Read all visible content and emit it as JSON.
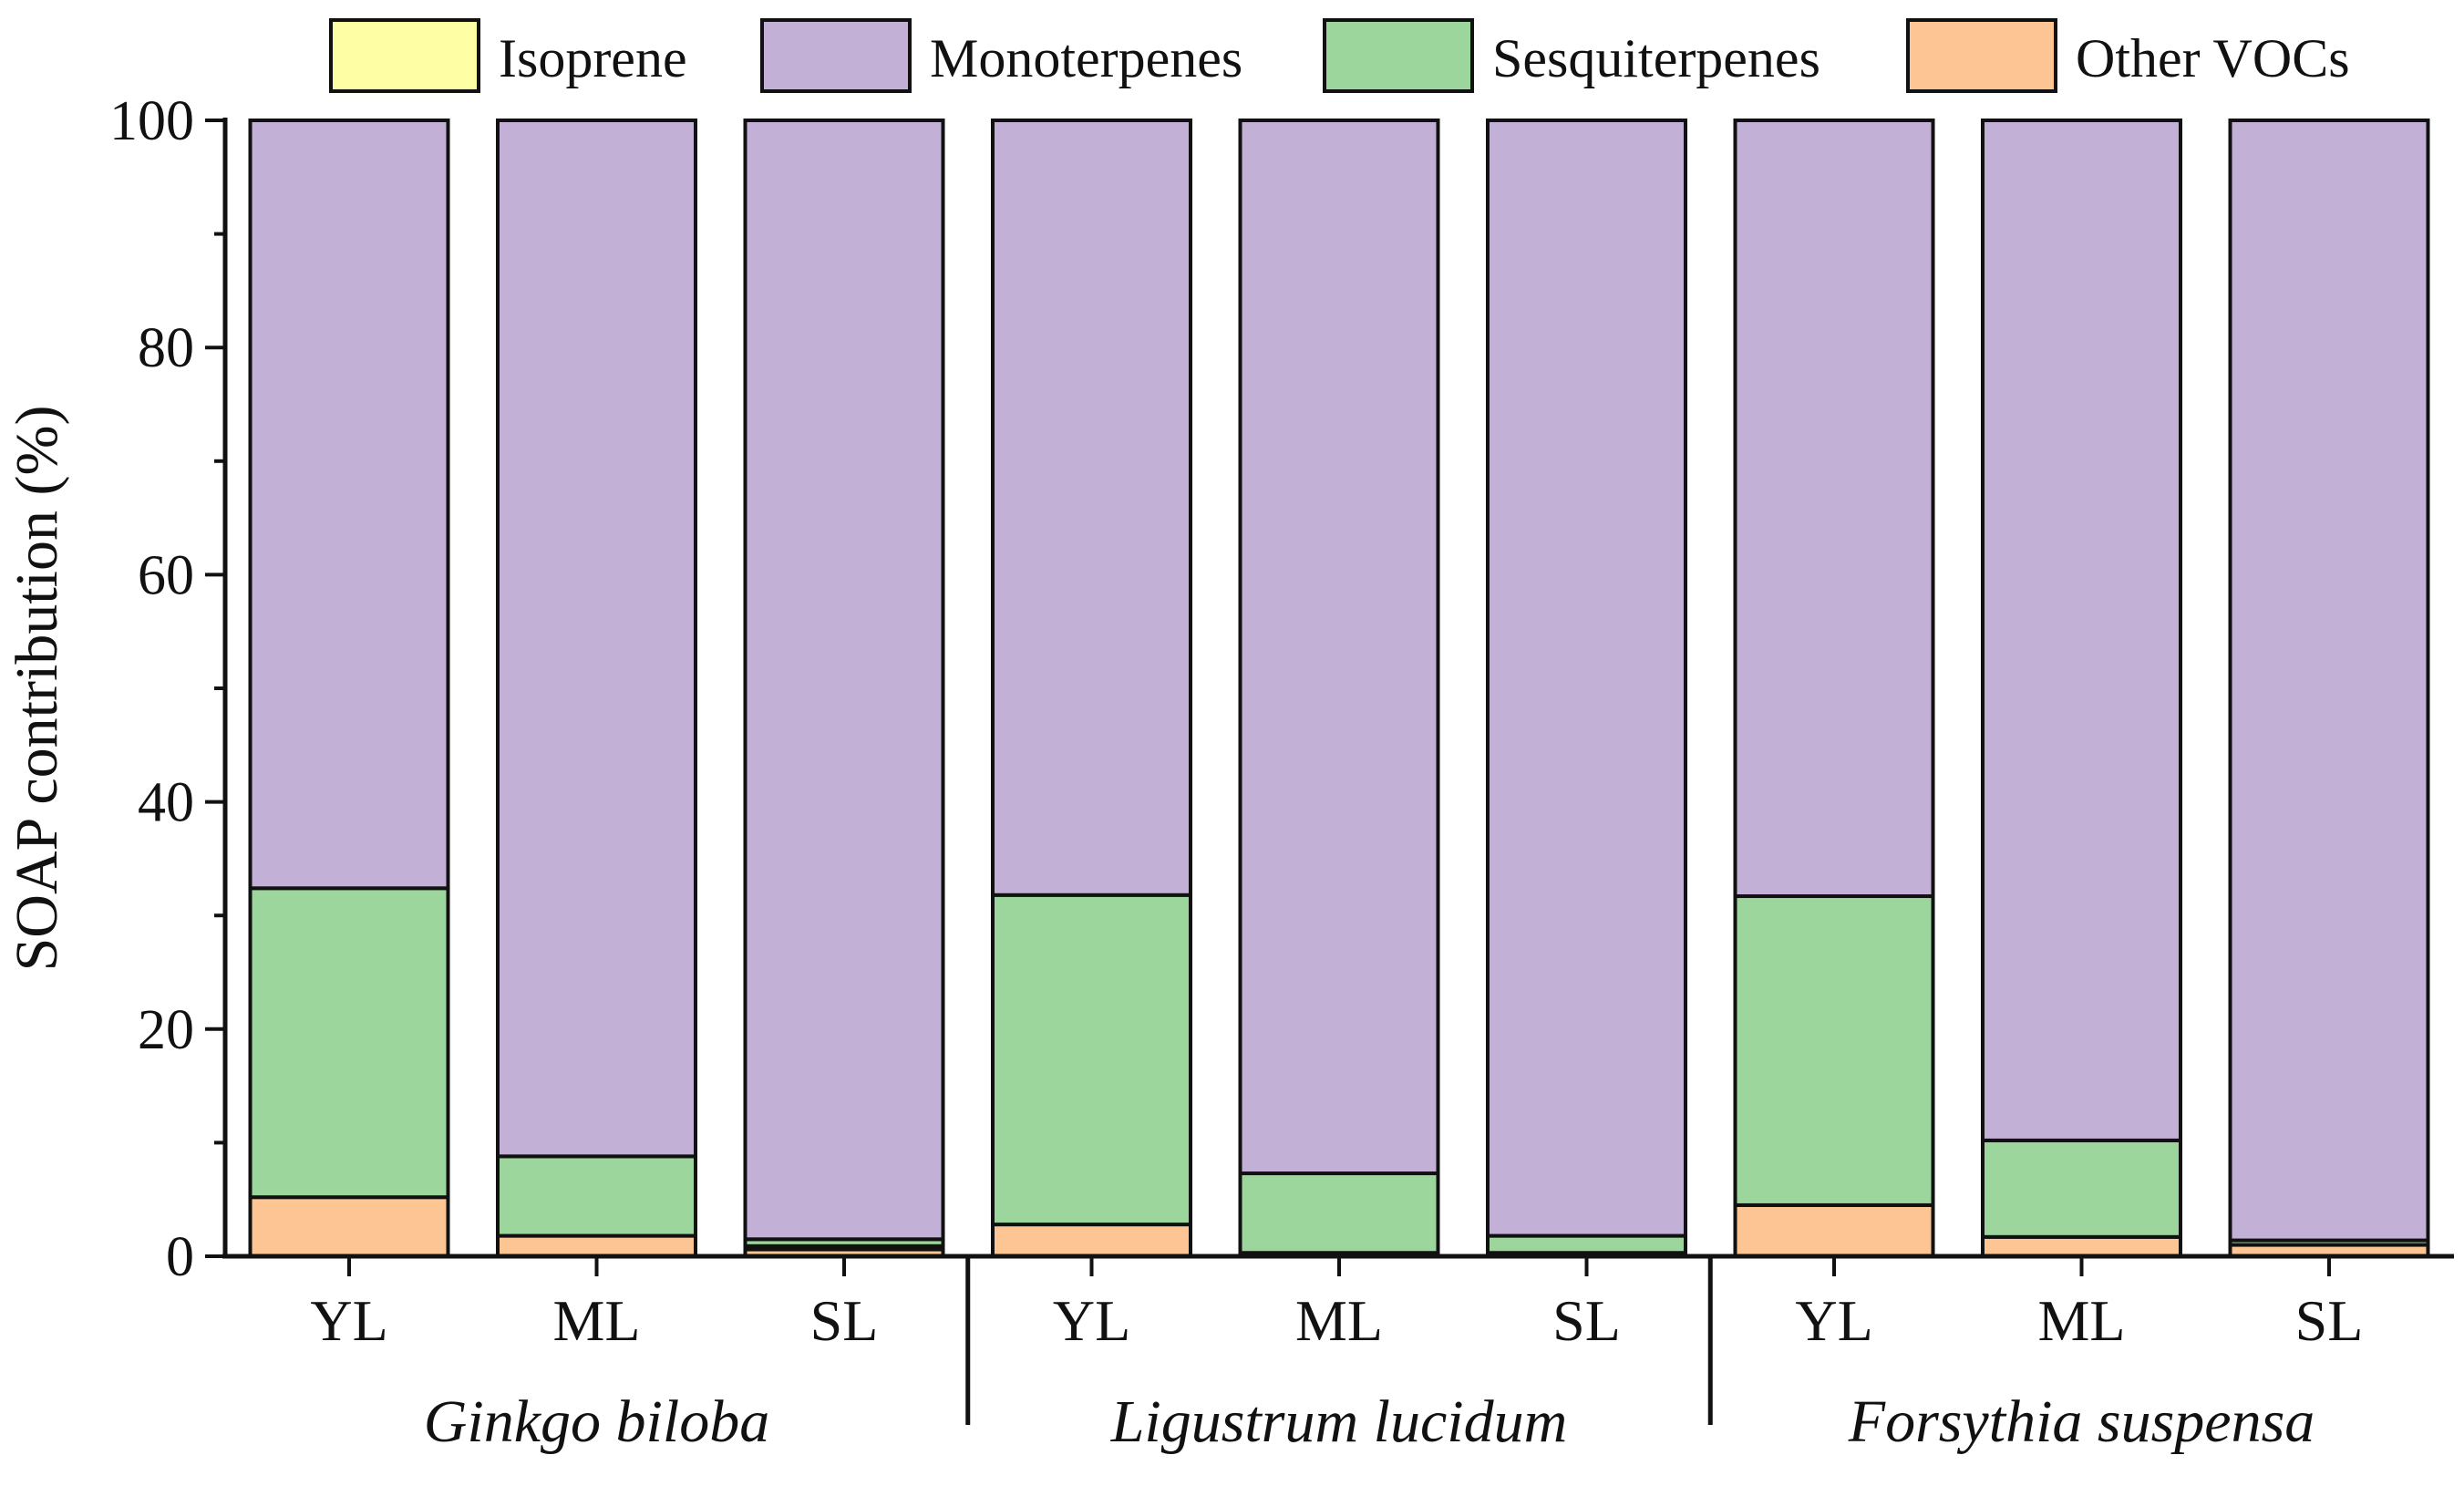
{
  "chart_data": {
    "type": "bar",
    "stacked": true,
    "title": "",
    "xlabel": "",
    "ylabel": "SOAP contribution (%)",
    "ylim": [
      0,
      100
    ],
    "yticks": [
      "0",
      "20",
      "40",
      "60",
      "80",
      "100"
    ],
    "grid": false,
    "legend_position": "top",
    "groups": [
      "Ginkgo biloba",
      "Ligustrum lucidum",
      "Forsythia suspensa"
    ],
    "categories": [
      "YL",
      "ML",
      "SL",
      "YL",
      "ML",
      "SL",
      "YL",
      "ML",
      "SL"
    ],
    "category_group": [
      0,
      0,
      0,
      1,
      1,
      1,
      2,
      2,
      2
    ],
    "series": [
      {
        "name": "Other VOCs",
        "color": "#fcc593",
        "values": [
          5.2,
          1.8,
          0.6,
          2.8,
          0.3,
          0.3,
          4.5,
          1.7,
          1.0
        ]
      },
      {
        "name": "Isoprene",
        "color": "#fefea5",
        "values": [
          0.0,
          0.0,
          0.3,
          0.0,
          0.0,
          0.0,
          0.0,
          0.0,
          0.0
        ]
      },
      {
        "name": "Sesquiterpenes",
        "color": "#9cd69c",
        "values": [
          27.2,
          7.0,
          0.6,
          29.0,
          7.0,
          1.5,
          27.2,
          8.5,
          0.4
        ]
      },
      {
        "name": "Monoterpenes",
        "color": "#c2b0d7",
        "values": [
          67.6,
          91.2,
          98.5,
          68.2,
          92.7,
          98.2,
          68.3,
          89.8,
          98.6
        ]
      }
    ],
    "legend_order": [
      "Isoprene",
      "Monoterpenes",
      "Sesquiterpenes",
      "Other VOCs"
    ]
  }
}
